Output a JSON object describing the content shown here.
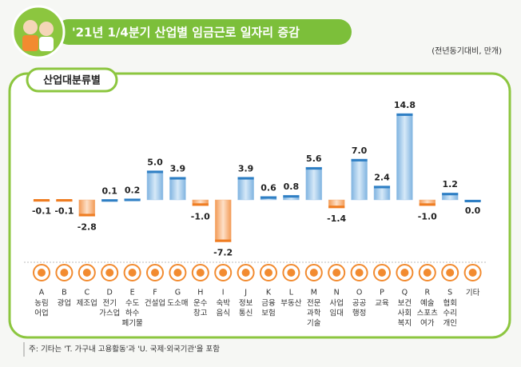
{
  "chart_data": {
    "type": "bar",
    "title": "'21년 1/4분기 산업별 임금근로 일자리 증감",
    "unit_note": "(전년동기대비, 만개)",
    "section_label": "산업대분류별",
    "footnote": "주: 기타는 'T. 가구내 고용활동'과 'U. 국제·외국기관'을 포함",
    "category_codes": [
      "A",
      "B",
      "C",
      "D",
      "E",
      "F",
      "G",
      "H",
      "I",
      "J",
      "K",
      "L",
      "M",
      "N",
      "O",
      "P",
      "Q",
      "R",
      "S",
      null
    ],
    "categories": [
      "농림\n어업",
      "광업",
      "제조업",
      "전기\n가스업",
      "수도\n하수\n폐기물",
      "건설업",
      "도소매",
      "운수\n창고",
      "숙박\n음식",
      "정보\n통신",
      "금융\n보험",
      "부동산",
      "전문\n과학\n기술",
      "사업\n임대",
      "공공\n행정",
      "교육",
      "보건\n사회\n복지",
      "예술\n스포츠\n여가",
      "협회\n수리\n개인",
      "기타"
    ],
    "values": [
      -0.1,
      -0.1,
      -2.8,
      0.1,
      0.2,
      5.0,
      3.9,
      -1.0,
      -7.2,
      3.9,
      0.6,
      0.8,
      5.6,
      -1.4,
      7.0,
      2.4,
      14.8,
      -1.0,
      1.2,
      0.0
    ],
    "value_labels": [
      "-0.1",
      "-0.1",
      "-2.8",
      "0.1",
      "0.2",
      "5.0",
      "3.9",
      "-1.0",
      "-7.2",
      "3.9",
      "0.6",
      "0.8",
      "5.6",
      "-1.4",
      "7.0",
      "2.4",
      "14.8",
      "-1.0",
      "1.2",
      "0.0"
    ],
    "positive_color": "#a9cdec",
    "negative_color": "#f7b886"
  }
}
